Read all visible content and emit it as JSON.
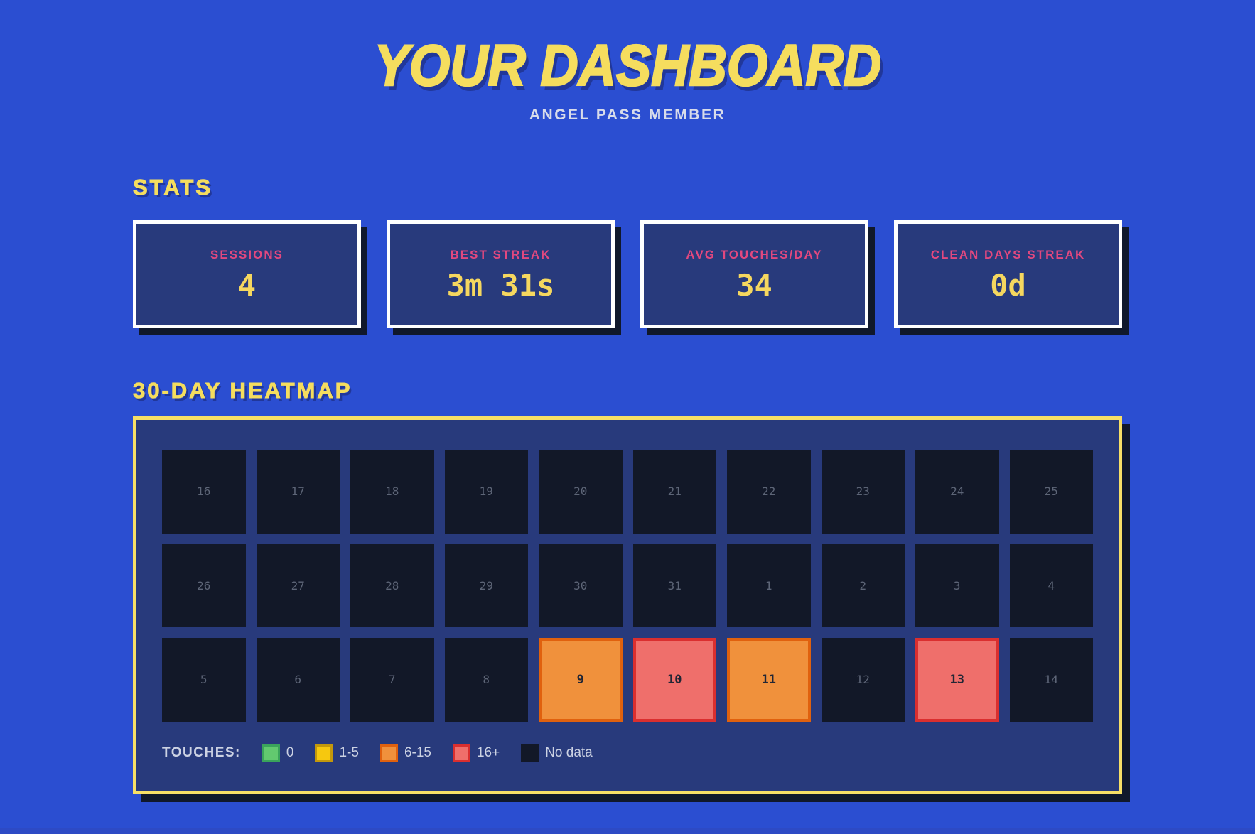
{
  "header": {
    "title": "YOUR DASHBOARD",
    "subtitle": "ANGEL PASS MEMBER"
  },
  "stats": {
    "section_title": "STATS",
    "cards": [
      {
        "label": "SESSIONS",
        "value": "4"
      },
      {
        "label": "BEST STREAK",
        "value": "3m 31s"
      },
      {
        "label": "AVG TOUCHES/DAY",
        "value": "34"
      },
      {
        "label": "CLEAN DAYS STREAK",
        "value": "0d"
      }
    ]
  },
  "heatmap": {
    "section_title": "30-DAY HEATMAP",
    "cells": [
      {
        "day": "16",
        "level": "No data"
      },
      {
        "day": "17",
        "level": "No data"
      },
      {
        "day": "18",
        "level": "No data"
      },
      {
        "day": "19",
        "level": "No data"
      },
      {
        "day": "20",
        "level": "No data"
      },
      {
        "day": "21",
        "level": "No data"
      },
      {
        "day": "22",
        "level": "No data"
      },
      {
        "day": "23",
        "level": "No data"
      },
      {
        "day": "24",
        "level": "No data"
      },
      {
        "day": "25",
        "level": "No data"
      },
      {
        "day": "26",
        "level": "No data"
      },
      {
        "day": "27",
        "level": "No data"
      },
      {
        "day": "28",
        "level": "No data"
      },
      {
        "day": "29",
        "level": "No data"
      },
      {
        "day": "30",
        "level": "No data"
      },
      {
        "day": "31",
        "level": "No data"
      },
      {
        "day": "1",
        "level": "No data"
      },
      {
        "day": "2",
        "level": "No data"
      },
      {
        "day": "3",
        "level": "No data"
      },
      {
        "day": "4",
        "level": "No data"
      },
      {
        "day": "5",
        "level": "No data"
      },
      {
        "day": "6",
        "level": "No data"
      },
      {
        "day": "7",
        "level": "No data"
      },
      {
        "day": "8",
        "level": "No data"
      },
      {
        "day": "9",
        "level": "6-15"
      },
      {
        "day": "10",
        "level": "16+"
      },
      {
        "day": "11",
        "level": "6-15"
      },
      {
        "day": "12",
        "level": "No data"
      },
      {
        "day": "13",
        "level": "16+"
      },
      {
        "day": "14",
        "level": "No data"
      }
    ],
    "legend": {
      "label": "TOUCHES:",
      "items": [
        {
          "label": "0",
          "fill": "#62c96f",
          "border": "#3aa45b"
        },
        {
          "label": "1-5",
          "fill": "#f6c80f",
          "border": "#c3980b"
        },
        {
          "label": "6-15",
          "fill": "#f0913c",
          "border": "#e0610e"
        },
        {
          "label": "16+",
          "fill": "#ef6f6b",
          "border": "#da2f2f"
        },
        {
          "label": "No data",
          "fill": "#121828",
          "border": "#121828"
        }
      ]
    }
  },
  "colors": {
    "page_background": "#2b4ed1",
    "panel_background": "#283a7c",
    "accent_yellow": "#f5dd5e",
    "accent_pink": "#e2487f",
    "cell_dark": "#121828",
    "shadow": "#10182b",
    "active_cell_text": "#222635"
  }
}
